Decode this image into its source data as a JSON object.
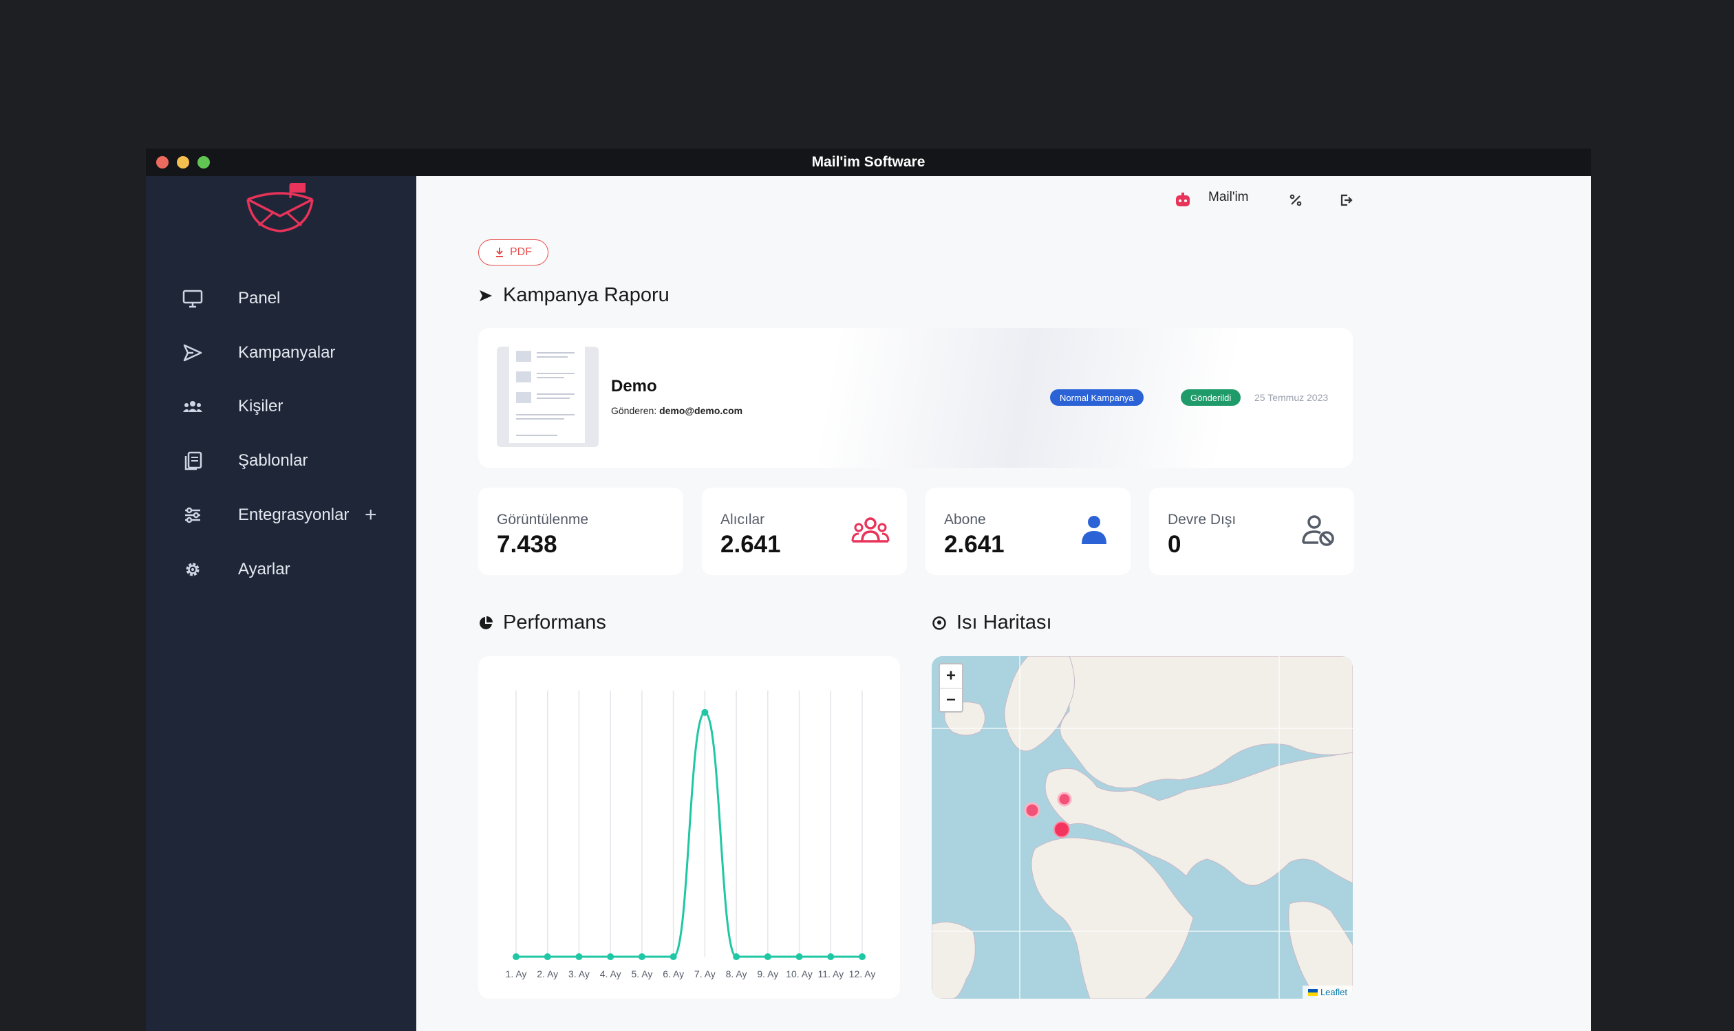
{
  "window": {
    "title": "Mail'im Software"
  },
  "sidebar": {
    "items": [
      {
        "label": "Panel",
        "icon": "monitor-icon"
      },
      {
        "label": "Kampanyalar",
        "icon": "send-icon"
      },
      {
        "label": "Kişiler",
        "icon": "users-icon"
      },
      {
        "label": "Şablonlar",
        "icon": "copy-icon"
      },
      {
        "label": "Entegrasyonlar",
        "icon": "integrations-icon",
        "expand": "+"
      },
      {
        "label": "Ayarlar",
        "icon": "gear-icon"
      }
    ]
  },
  "topbar": {
    "user_name": "Mail'im",
    "icons": [
      "robot-avatar-icon",
      "percent-icon",
      "logout-icon"
    ]
  },
  "pdf_button": {
    "label": "PDF"
  },
  "report": {
    "title": "Kampanya Raporu",
    "campaign": {
      "name": "Demo",
      "sender_label": "Gönderen:",
      "sender_email": "demo@demo.com",
      "type_badge": "Normal Kampanya",
      "status_badge": "Gönderildi",
      "date": "25 Temmuz 2023"
    }
  },
  "stats": [
    {
      "label": "Görüntülenme",
      "value": "7.438",
      "icon": ""
    },
    {
      "label": "Alıcılar",
      "value": "2.641",
      "icon": "group-icon"
    },
    {
      "label": "Abone",
      "value": "2.641",
      "icon": "person-icon"
    },
    {
      "label": "Devre Dışı",
      "value": "0",
      "icon": "person-blocked-icon"
    }
  ],
  "performance": {
    "title": "Performans",
    "chart_data": {
      "type": "line",
      "categories": [
        "1. Ay",
        "2. Ay",
        "3. Ay",
        "4. Ay",
        "5. Ay",
        "6. Ay",
        "7. Ay",
        "8. Ay",
        "9. Ay",
        "10. Ay",
        "11. Ay",
        "12. Ay"
      ],
      "values": [
        0,
        0,
        0,
        0,
        0,
        0,
        7438,
        0,
        0,
        0,
        0,
        0
      ],
      "ylim": [
        0,
        8000
      ],
      "grid": "vertical",
      "color": "#1fc7a5"
    }
  },
  "heatmap": {
    "title": "Isı Haritası",
    "zoom_in": "+",
    "zoom_out": "−",
    "attribution": "Leaflet"
  },
  "colors": {
    "accent": "#e8335a",
    "sidebar": "#1e2637",
    "teal": "#1fc7a5",
    "blue": "#2b63d6",
    "green": "#1f9b6a"
  }
}
